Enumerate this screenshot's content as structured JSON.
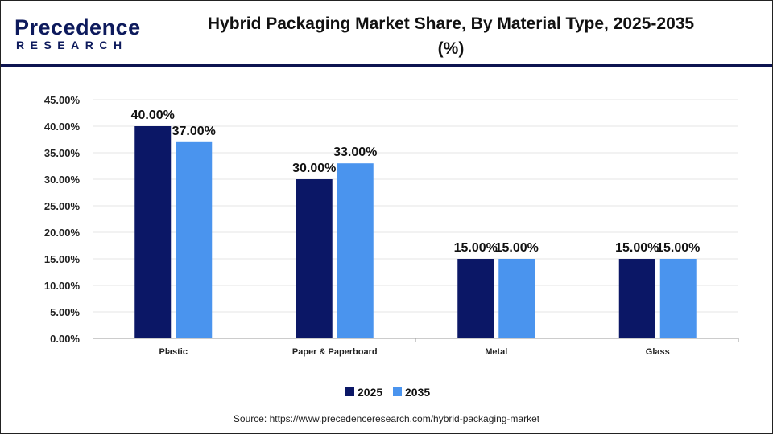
{
  "logo": {
    "top": "Precedence",
    "bottom": "RESEARCH"
  },
  "title": "Hybrid Packaging Market Share, By Material Type, 2025-2035 (%)",
  "source": "Source: https://www.precedenceresearch.com/hybrid-packaging-market",
  "colors": {
    "s2025": "#0b1766",
    "s2035": "#4a94ee"
  },
  "chart_data": {
    "type": "bar",
    "title": "Hybrid Packaging Market Share, By Material Type, 2025-2035 (%)",
    "categories": [
      "Plastic",
      "Paper & Paperboard",
      "Metal",
      "Glass"
    ],
    "series": [
      {
        "name": "2025",
        "values": [
          40,
          30,
          15,
          15
        ],
        "labels": [
          "40.00%",
          "30.00%",
          "15.00%",
          "15.00%"
        ]
      },
      {
        "name": "2035",
        "values": [
          37,
          33,
          15,
          15
        ],
        "labels": [
          "37.00%",
          "33.00%",
          "15.00%",
          "15.00%"
        ]
      }
    ],
    "yticks": [
      "0.00%",
      "5.00%",
      "10.00%",
      "15.00%",
      "20.00%",
      "25.00%",
      "30.00%",
      "35.00%",
      "40.00%",
      "45.00%"
    ],
    "ylim": [
      0,
      45
    ],
    "xlabel": "",
    "ylabel": "",
    "grid": true,
    "legend": "bottom-center"
  }
}
